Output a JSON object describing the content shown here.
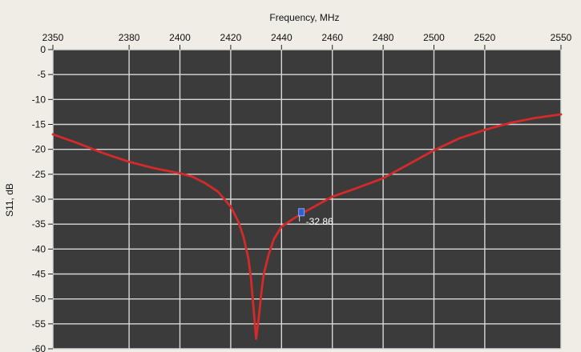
{
  "chart_data": {
    "type": "line",
    "xlabel": "Frequency, MHz",
    "ylabel": "S11, dB",
    "xlim": [
      2350,
      2550
    ],
    "ylim": [
      -60,
      0
    ],
    "x_ticks": [
      2350,
      2380,
      2400,
      2420,
      2440,
      2460,
      2480,
      2500,
      2520,
      2550
    ],
    "y_ticks": [
      0,
      -5,
      -10,
      -15,
      -20,
      -25,
      -30,
      -35,
      -40,
      -45,
      -50,
      -55,
      -60
    ],
    "x_axis_position": "top",
    "grid": true,
    "colors": {
      "background": "#3b3b3b",
      "grid": "#d8d8d8",
      "line": "#d42a2a",
      "marker": "#2e5fd8"
    },
    "series": [
      {
        "x": [
          2350,
          2360,
          2370,
          2380,
          2390,
          2400,
          2405,
          2410,
          2415,
          2420,
          2423,
          2425,
          2427,
          2428,
          2429,
          2430,
          2431,
          2432,
          2433,
          2435,
          2437,
          2440,
          2445,
          2450,
          2460,
          2470,
          2480,
          2490,
          2500,
          2510,
          2520,
          2530,
          2540,
          2550
        ],
        "y": [
          -17,
          -18.8,
          -20.8,
          -22.5,
          -23.8,
          -24.8,
          -25.5,
          -26.8,
          -28.5,
          -31.5,
          -34.5,
          -37.5,
          -42,
          -46,
          -52,
          -58,
          -54,
          -49,
          -45,
          -41,
          -38,
          -35.5,
          -33.8,
          -32.3,
          -29.5,
          -27.7,
          -25.8,
          -23,
          -20.2,
          -17.8,
          -16.1,
          -14.7,
          -13.7,
          -13
        ]
      }
    ],
    "annotations": [
      {
        "x": 2448,
        "y": -32.86,
        "text": "-32.86"
      }
    ]
  }
}
